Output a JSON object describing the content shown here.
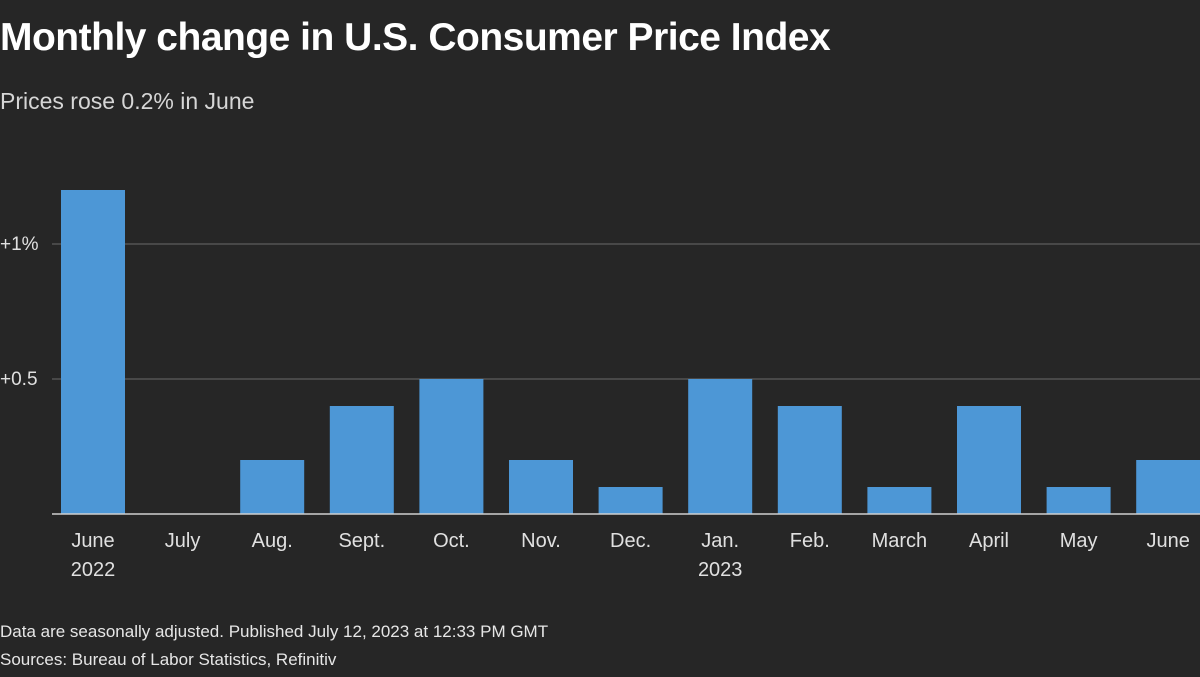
{
  "header": {
    "title": "Monthly change in U.S. Consumer Price Index",
    "subtitle": "Prices rose 0.2% in June"
  },
  "footer": {
    "note": "Data are seasonally adjusted. Published July 12, 2023 at 12:33 PM GMT",
    "sources": "Sources: Bureau of Labor Statistics, Refinitiv"
  },
  "colors": {
    "background": "#262626",
    "bar": "#4d97d6",
    "gridline": "#6b6b6b",
    "axis": "#cfcfcf",
    "text": "#ffffff"
  },
  "chart_data": {
    "type": "bar",
    "categories": [
      [
        "June",
        "2022"
      ],
      [
        "July"
      ],
      [
        "Aug."
      ],
      [
        "Sept."
      ],
      [
        "Oct."
      ],
      [
        "Nov."
      ],
      [
        "Dec."
      ],
      [
        "Jan.",
        "2023"
      ],
      [
        "Feb."
      ],
      [
        "March"
      ],
      [
        "April"
      ],
      [
        "May"
      ],
      [
        "June"
      ]
    ],
    "values": [
      1.2,
      0.0,
      0.2,
      0.4,
      0.5,
      0.2,
      0.1,
      0.5,
      0.4,
      0.1,
      0.4,
      0.1,
      0.2
    ],
    "yticks": [
      {
        "value": 0.5,
        "label": "+0.5"
      },
      {
        "value": 1.0,
        "label": "+1%"
      }
    ],
    "ylim": [
      0,
      1.2
    ],
    "grid": true,
    "legend": "none"
  }
}
